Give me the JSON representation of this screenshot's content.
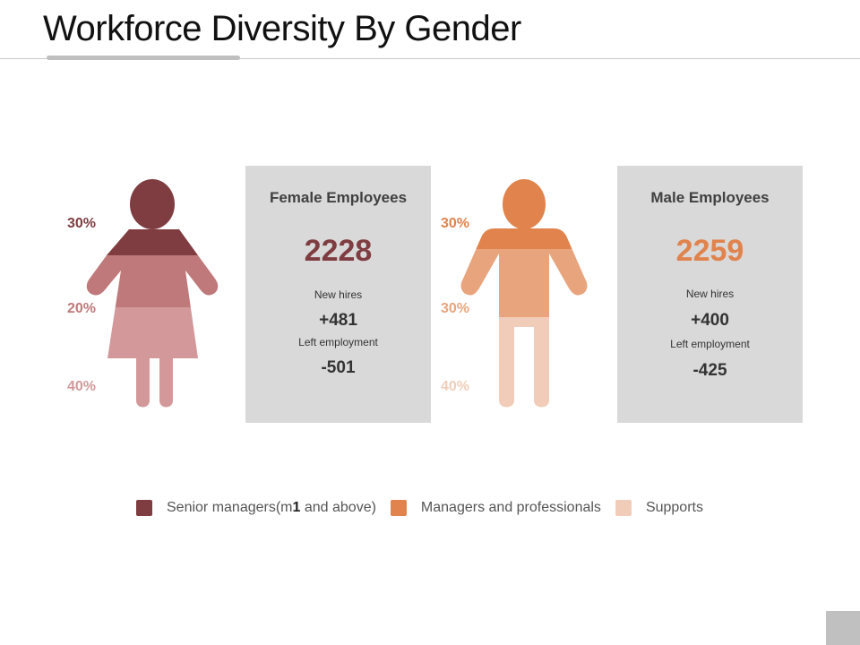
{
  "title": "Workforce Diversity By Gender",
  "colors": {
    "female_senior": "#7f3d41",
    "female_managers": "#c0797a",
    "female_supports": "#d3999a",
    "male_senior": "#e0834d",
    "male_managers": "#e8a47d",
    "male_supports": "#f1cdb9",
    "card_bg": "#d9d9d9"
  },
  "female": {
    "icon": "female-person-icon",
    "pct_top": "30%",
    "pct_mid": "20%",
    "pct_bottom": "40%",
    "card_title": "Female Employees",
    "total": "2228",
    "new_hires_label": "New hires",
    "new_hires": "+481",
    "left_label": "Left employment",
    "left": "-501"
  },
  "male": {
    "icon": "male-person-icon",
    "pct_top": "30%",
    "pct_mid": "30%",
    "pct_bottom": "40%",
    "card_title": "Male Employees",
    "total": "2259",
    "new_hires_label": "New hires",
    "new_hires": "+400",
    "left_label": "Left employment",
    "left": "-425"
  },
  "legend": {
    "senior_pre": "Senior managers(m",
    "senior_bold": "1",
    "senior_post": " and above)",
    "managers": "Managers and professionals",
    "supports": "Supports"
  }
}
